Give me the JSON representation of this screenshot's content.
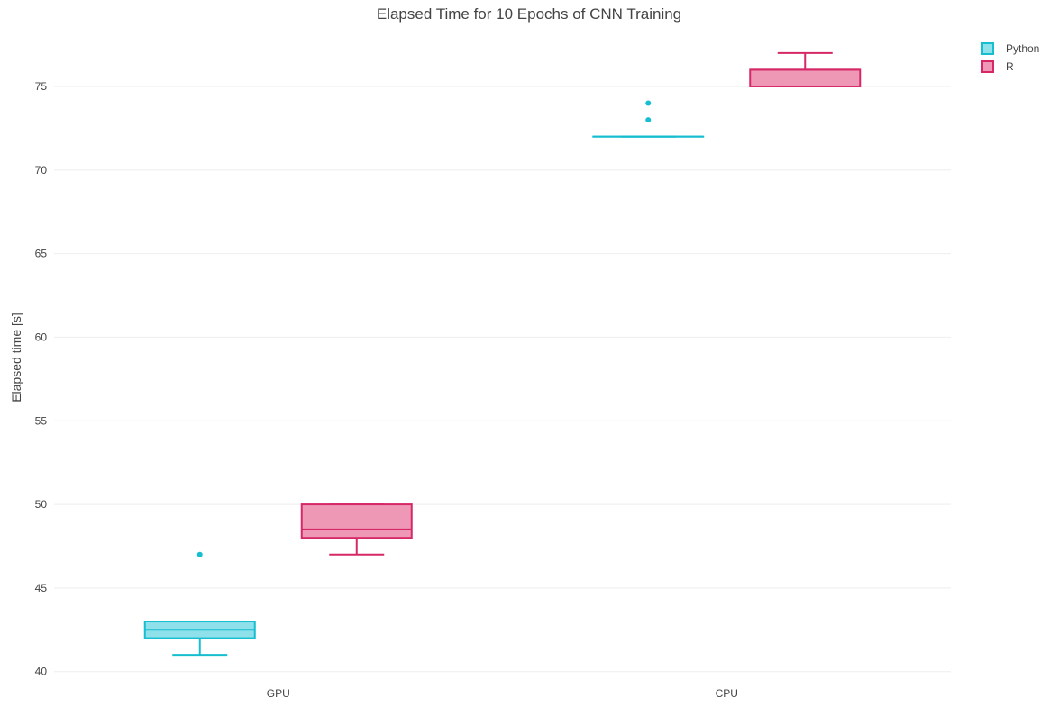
{
  "chart_data": {
    "type": "box",
    "title": "Elapsed Time for 10 Epochs of CNN Training",
    "xlabel": "",
    "ylabel": "Elapsed time [s]",
    "ylim": [
      39.5,
      78.5
    ],
    "yticks": [
      40,
      45,
      50,
      55,
      60,
      65,
      70,
      75
    ],
    "categories": [
      "GPU",
      "CPU"
    ],
    "grid": true,
    "legend_position": "top-right",
    "series": [
      {
        "name": "Python",
        "color": "#17becf",
        "fill": "#8ee0ea",
        "boxes": [
          {
            "category": "GPU",
            "lower_whisker": 41,
            "q1": 42,
            "median": 42.5,
            "q3": 43,
            "upper_whisker": 43,
            "outliers": [
              47
            ]
          },
          {
            "category": "CPU",
            "lower_whisker": 72,
            "q1": 72,
            "median": 72,
            "q3": 72,
            "upper_whisker": 72,
            "outliers": [
              73,
              74
            ]
          }
        ]
      },
      {
        "name": "R",
        "color": "#d62867",
        "fill": "#ef98b6",
        "boxes": [
          {
            "category": "GPU",
            "lower_whisker": 47,
            "q1": 48,
            "median": 48.5,
            "q3": 50,
            "upper_whisker": 50,
            "outliers": []
          },
          {
            "category": "CPU",
            "lower_whisker": 75,
            "q1": 75,
            "median": 76,
            "q3": 76,
            "upper_whisker": 77,
            "outliers": []
          }
        ]
      }
    ]
  }
}
